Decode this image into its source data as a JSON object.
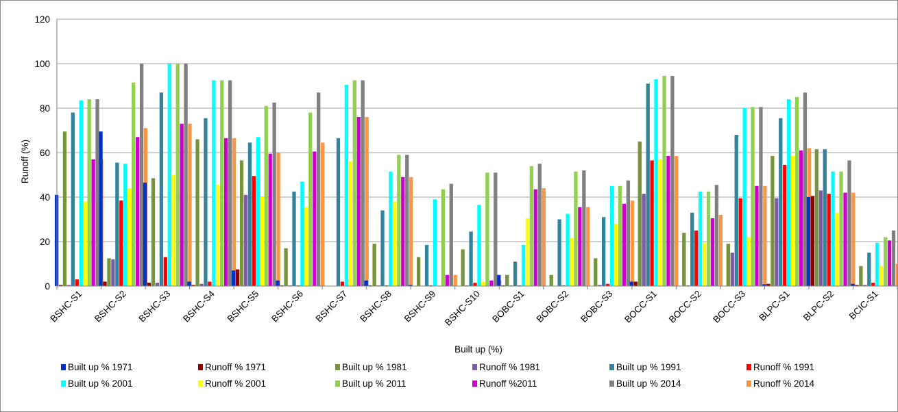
{
  "chart_data": {
    "type": "bar",
    "title": "",
    "xlabel": "Built up (%)",
    "ylabel": "Runoff  (%)",
    "ylim": [
      0,
      120
    ],
    "yticks": [
      0,
      20,
      40,
      60,
      80,
      100,
      120
    ],
    "grid": true,
    "legend_position": "bottom",
    "categories": [
      "BSHC-S1",
      "BSHC-S2",
      "BSHC-S3",
      "BSHC-S4",
      "BSHC-S5",
      "BSHC-S6",
      "BSHC-S7",
      "BSHC-S8",
      "BSHC-S9",
      "BSHC-S10",
      "BOBC-S1",
      "BOBC-S2",
      "BOBC-S3",
      "BOCC-S1",
      "BOCC-S2",
      "BOCC-S3",
      "BLPC-S1",
      "BLPC-S2",
      "BCIC-S1"
    ],
    "series": [
      {
        "name": "Built up % 1971",
        "color": "#0033cc",
        "values": [
          41,
          69.5,
          46.5,
          2,
          7,
          2.5,
          0,
          2.5,
          0.5,
          0,
          5,
          0,
          0,
          2,
          0,
          0,
          0.8,
          40,
          1
        ]
      },
      {
        "name": "Runoff % 1971",
        "color": "#8b0000",
        "values": [
          0.5,
          2,
          1.5,
          0.5,
          7.5,
          0.3,
          0,
          0.3,
          0,
          0,
          0.3,
          0,
          0,
          2,
          0,
          0,
          1,
          40.5,
          0.5
        ]
      },
      {
        "name": "Built up % 1981",
        "color": "#77933c",
        "values": [
          69.5,
          12.5,
          48.5,
          66,
          56.5,
          17,
          0,
          19,
          13,
          16.5,
          5,
          5,
          12.5,
          65,
          24,
          19,
          58.5,
          61.5,
          9
        ]
      },
      {
        "name": "Runoff % 1981",
        "color": "#7f5ba6",
        "values": [
          0.5,
          12,
          1.5,
          1,
          41,
          0.3,
          0,
          0.3,
          0,
          0.3,
          0.3,
          0,
          0.5,
          41.5,
          0.3,
          15,
          39.5,
          43,
          0.5
        ]
      },
      {
        "name": "Built up % 1991",
        "color": "#31849b",
        "values": [
          78,
          55.5,
          87,
          75.5,
          64.5,
          42.5,
          66.5,
          34,
          18.5,
          24.5,
          11,
          30,
          31,
          91,
          33,
          68,
          75.5,
          61.5,
          15
        ]
      },
      {
        "name": "Runoff % 1991",
        "color": "#ff0000",
        "values": [
          3,
          38.5,
          13,
          2,
          49.5,
          0.3,
          2,
          0.3,
          0.3,
          1.5,
          0.3,
          0.3,
          1,
          56.5,
          25,
          39.5,
          54.5,
          41.5,
          1.5
        ]
      },
      {
        "name": "Built up % 2001",
        "color": "#00ffff",
        "values": [
          83.5,
          55,
          100,
          92.5,
          67,
          47,
          90.5,
          51.5,
          39,
          36.5,
          18.5,
          32.5,
          45,
          93,
          42.5,
          80,
          84,
          51.5,
          19.5
        ]
      },
      {
        "name": "Runoff % 2001",
        "color": "#ffff00",
        "values": [
          38,
          44,
          50,
          45.5,
          40,
          35.5,
          56,
          38,
          0.3,
          2,
          30.5,
          21.5,
          28,
          57,
          19.5,
          22,
          58.5,
          33,
          9
        ]
      },
      {
        "name": "Built up % 2011",
        "color": "#92d050",
        "values": [
          84,
          91.5,
          100,
          92.5,
          81,
          78,
          92.5,
          59,
          43.5,
          51,
          54,
          51.5,
          45,
          94.5,
          42.5,
          80.5,
          85,
          51.5,
          22
        ]
      },
      {
        "name": "Runoff %2011",
        "color": "#cc00cc",
        "values": [
          57,
          67,
          73,
          66.5,
          59.5,
          60.5,
          76,
          49,
          5,
          2.5,
          43.5,
          35.5,
          37,
          58.5,
          30.5,
          45,
          61,
          42,
          20.5
        ]
      },
      {
        "name": "Built up % 2014",
        "color": "#808080",
        "values": [
          84,
          100,
          100,
          92.5,
          82.5,
          87,
          92.5,
          59,
          46,
          51,
          55,
          52,
          47.5,
          94.5,
          45.5,
          80.5,
          87,
          56.5,
          25
        ]
      },
      {
        "name": "Runoff % 2014",
        "color": "#f79646",
        "values": [
          57,
          71,
          73,
          66.5,
          60,
          64.5,
          76,
          49,
          5,
          2.5,
          44,
          35.5,
          38.5,
          58.5,
          32,
          45,
          62,
          42,
          10
        ]
      }
    ]
  }
}
